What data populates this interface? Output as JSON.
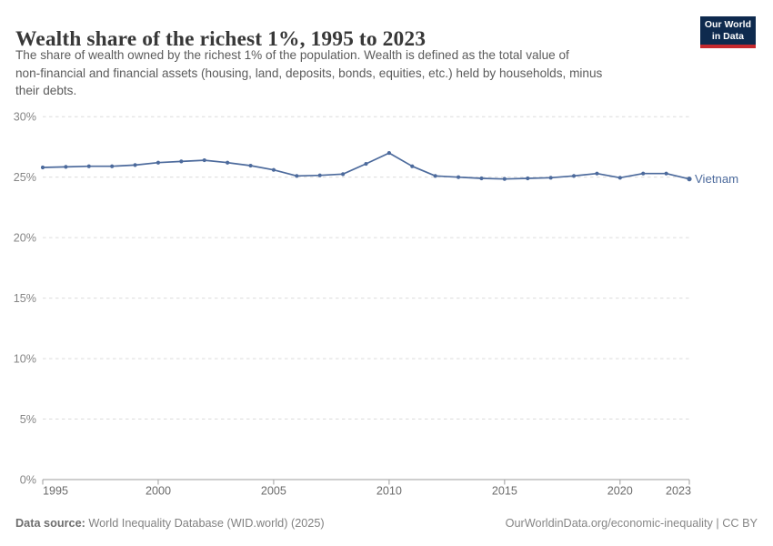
{
  "header": {
    "title": "Wealth share of the richest 1%, 1995 to 2023",
    "subtitle_lines": [
      "The share of wealth owned by the richest 1% of the population. Wealth is defined as the total value of",
      "non-financial and financial assets (housing, land, deposits, bonds, equities, etc.) held by households, minus",
      "their debts."
    ]
  },
  "logo": {
    "line1": "Our World",
    "line2": "in Data"
  },
  "chart_data": {
    "type": "line",
    "title": "Wealth share of the richest 1%, 1995 to 2023",
    "xlabel": "",
    "ylabel": "",
    "ylim": [
      0,
      30
    ],
    "yticks": [
      0,
      5,
      10,
      15,
      20,
      25,
      30
    ],
    "ytick_suffix": "%",
    "xticks": [
      1995,
      2000,
      2005,
      2010,
      2015,
      2020,
      2023
    ],
    "x_range": [
      1995,
      2023
    ],
    "grid": "horizontal-dashed",
    "legend_position": "end-of-line-label",
    "series": [
      {
        "name": "Vietnam",
        "x": [
          1995,
          1996,
          1997,
          1998,
          1999,
          2000,
          2001,
          2002,
          2003,
          2004,
          2005,
          2006,
          2007,
          2008,
          2009,
          2010,
          2011,
          2012,
          2013,
          2014,
          2015,
          2016,
          2017,
          2018,
          2019,
          2020,
          2021,
          2022,
          2023
        ],
        "values": [
          25.8,
          25.85,
          25.9,
          25.9,
          26.0,
          26.2,
          26.3,
          26.4,
          26.2,
          25.95,
          25.6,
          25.1,
          25.15,
          25.25,
          26.1,
          27.0,
          25.9,
          25.1,
          25.0,
          24.9,
          24.85,
          24.9,
          24.95,
          25.1,
          25.3,
          24.95,
          25.3,
          25.3,
          24.85
        ]
      }
    ]
  },
  "colors": {
    "series_blue": "#4C6A9C",
    "gridline": "#dcdcdc",
    "axis": "#9e9e9e",
    "ytick_label": "#858585",
    "xtick_label": "#6b6b6b",
    "logo_bg": "#0e2a4e",
    "logo_stripe": "#c5292e"
  },
  "footer": {
    "source_label": "Data source:",
    "source_text": " World Inequality Database (WID.world) (2025)",
    "rights": "OurWorldinData.org/economic-inequality | CC BY"
  }
}
